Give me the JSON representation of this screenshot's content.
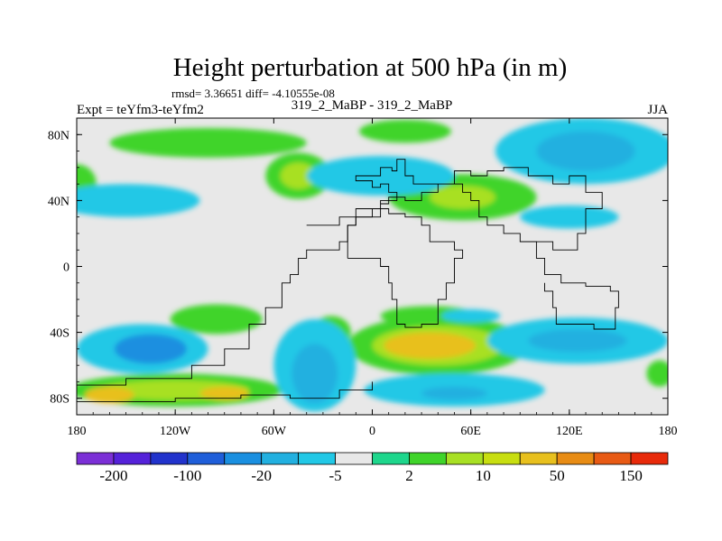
{
  "chart_data": {
    "type": "heatmap",
    "title": "Height perturbation at 500 hPa (in m)",
    "stats_line": "rmsd= 3.36651 diff= -4.10555e-08",
    "experiment_label": "Expt = teYfm3-teYfm2",
    "subtitle": "319_2_MaBP - 319_2_MaBP",
    "season": "JJA",
    "xlim": [
      -180,
      180
    ],
    "ylim": [
      -90,
      90
    ],
    "x_ticks": [
      {
        "value": -180,
        "label": "180"
      },
      {
        "value": -120,
        "label": "120W"
      },
      {
        "value": -60,
        "label": "60W"
      },
      {
        "value": 0,
        "label": "0"
      },
      {
        "value": 60,
        "label": "60E"
      },
      {
        "value": 120,
        "label": "120E"
      },
      {
        "value": 180,
        "label": "180"
      }
    ],
    "y_ticks": [
      {
        "value": 80,
        "label": "80N"
      },
      {
        "value": 40,
        "label": "40N"
      },
      {
        "value": 0,
        "label": "0"
      },
      {
        "value": -40,
        "label": "40S"
      },
      {
        "value": -80,
        "label": "80S"
      }
    ],
    "colorbar": {
      "colors": [
        "#7b2fd6",
        "#5522d9",
        "#2233cc",
        "#1f5ed9",
        "#1a8fe0",
        "#22b0e0",
        "#22c8e6",
        "#e8e8e8",
        "#1ed68c",
        "#3fd42a",
        "#a8e024",
        "#c8de10",
        "#e8c01e",
        "#e88c14",
        "#e85a14",
        "#e82a0a"
      ],
      "tick_labels": [
        {
          "index": 1,
          "label": "-200"
        },
        {
          "index": 3,
          "label": "-100"
        },
        {
          "index": 5,
          "label": "-20"
        },
        {
          "index": 7,
          "label": "-5"
        },
        {
          "index": 9,
          "label": "2"
        },
        {
          "index": 11,
          "label": "10"
        },
        {
          "index": 13,
          "label": "50"
        },
        {
          "index": 15,
          "label": "150"
        }
      ]
    },
    "field_regions": [
      {
        "cls": "pos",
        "level": 9,
        "lon": -180,
        "lat": 50,
        "rlon": 12,
        "rlat": 12
      },
      {
        "cls": "pos",
        "level": 9,
        "lon": -100,
        "lat": 75,
        "rlon": 60,
        "rlat": 9
      },
      {
        "cls": "pos",
        "level": 9,
        "lon": -45,
        "lat": 55,
        "rlon": 20,
        "rlat": 14
      },
      {
        "cls": "pos",
        "level": 10,
        "lon": -45,
        "lat": 55,
        "rlon": 11,
        "rlat": 8
      },
      {
        "cls": "pos",
        "level": 9,
        "lon": 20,
        "lat": 82,
        "rlon": 28,
        "rlat": 7
      },
      {
        "cls": "pos",
        "level": 9,
        "lon": 55,
        "lat": 42,
        "rlon": 45,
        "rlat": 14
      },
      {
        "cls": "pos",
        "level": 10,
        "lon": 55,
        "lat": 42,
        "rlon": 20,
        "rlat": 7
      },
      {
        "cls": "pos",
        "level": 9,
        "lon": -95,
        "lat": -32,
        "rlon": 28,
        "rlat": 9
      },
      {
        "cls": "pos",
        "level": 9,
        "lon": -25,
        "lat": -40,
        "rlon": 12,
        "rlat": 10
      },
      {
        "cls": "pos",
        "level": 9,
        "lon": 40,
        "lat": -48,
        "rlon": 55,
        "rlat": 18
      },
      {
        "cls": "pos",
        "level": 10,
        "lon": 40,
        "lat": -48,
        "rlon": 40,
        "rlat": 12
      },
      {
        "cls": "pos",
        "level": 12,
        "lon": 35,
        "lat": -48,
        "rlon": 28,
        "rlat": 8
      },
      {
        "cls": "pos",
        "level": 9,
        "lon": 35,
        "lat": -30,
        "rlon": 30,
        "rlat": 6
      },
      {
        "cls": "pos",
        "level": 9,
        "lon": -120,
        "lat": -75,
        "rlon": 65,
        "rlat": 10
      },
      {
        "cls": "pos",
        "level": 10,
        "lon": -120,
        "lat": -75,
        "rlon": 45,
        "rlat": 6
      },
      {
        "cls": "pos",
        "level": 12,
        "lon": -160,
        "lat": -78,
        "rlon": 15,
        "rlat": 5
      },
      {
        "cls": "pos",
        "level": 12,
        "lon": -90,
        "lat": -77,
        "rlon": 15,
        "rlat": 4
      },
      {
        "cls": "pos",
        "level": 9,
        "lon": 175,
        "lat": -65,
        "rlon": 8,
        "rlat": 8
      },
      {
        "cls": "neg",
        "level": 6,
        "lon": -150,
        "lat": 40,
        "rlon": 45,
        "rlat": 10
      },
      {
        "cls": "neg",
        "level": 6,
        "lon": 5,
        "lat": 55,
        "rlon": 45,
        "rlat": 12
      },
      {
        "cls": "neg",
        "level": 6,
        "lon": 130,
        "lat": 70,
        "rlon": 55,
        "rlat": 20
      },
      {
        "cls": "neg",
        "level": 5,
        "lon": 130,
        "lat": 70,
        "rlon": 30,
        "rlat": 12
      },
      {
        "cls": "neg",
        "level": 6,
        "lon": 120,
        "lat": 30,
        "rlon": 30,
        "rlat": 7
      },
      {
        "cls": "neg",
        "level": 6,
        "lon": -140,
        "lat": -50,
        "rlon": 40,
        "rlat": 15
      },
      {
        "cls": "neg",
        "level": 4,
        "lon": -135,
        "lat": -50,
        "rlon": 22,
        "rlat": 9
      },
      {
        "cls": "neg",
        "level": 6,
        "lon": -35,
        "lat": -60,
        "rlon": 25,
        "rlat": 28
      },
      {
        "cls": "neg",
        "level": 5,
        "lon": -35,
        "lat": -65,
        "rlon": 14,
        "rlat": 18
      },
      {
        "cls": "neg",
        "level": 6,
        "lon": 125,
        "lat": -45,
        "rlon": 55,
        "rlat": 14
      },
      {
        "cls": "neg",
        "level": 5,
        "lon": 125,
        "lat": -45,
        "rlon": 30,
        "rlat": 7
      },
      {
        "cls": "neg",
        "level": 6,
        "lon": 50,
        "lat": -75,
        "rlon": 55,
        "rlat": 10
      },
      {
        "cls": "neg",
        "level": 5,
        "lon": 50,
        "lat": -77,
        "rlon": 20,
        "rlat": 4
      },
      {
        "cls": "neg",
        "level": 6,
        "lon": 60,
        "lat": -30,
        "rlon": 18,
        "rlat": 4
      }
    ],
    "coastline_lonlat": [
      [
        [
          -40,
          25
        ],
        [
          -20,
          25
        ],
        [
          -20,
          30
        ],
        [
          -5,
          30
        ],
        [
          5,
          40
        ],
        [
          15,
          45
        ],
        [
          10,
          50
        ],
        [
          5,
          48
        ],
        [
          0,
          52
        ],
        [
          -10,
          55
        ],
        [
          5,
          60
        ],
        [
          12,
          58
        ],
        [
          15,
          65
        ],
        [
          20,
          55
        ],
        [
          25,
          50
        ],
        [
          45,
          50
        ],
        [
          55,
          45
        ],
        [
          60,
          40
        ],
        [
          65,
          30
        ],
        [
          70,
          25
        ],
        [
          80,
          20
        ],
        [
          90,
          15
        ],
        [
          100,
          15
        ],
        [
          110,
          10
        ],
        [
          120,
          10
        ],
        [
          125,
          20
        ],
        [
          130,
          35
        ],
        [
          140,
          45
        ],
        [
          130,
          55
        ],
        [
          120,
          50
        ],
        [
          110,
          55
        ],
        [
          95,
          60
        ],
        [
          80,
          58
        ],
        [
          70,
          55
        ],
        [
          60,
          58
        ],
        [
          50,
          50
        ],
        [
          40,
          45
        ],
        [
          30,
          40
        ],
        [
          20,
          42
        ],
        [
          10,
          38
        ],
        [
          5,
          35
        ],
        [
          -5,
          35
        ],
        [
          -10,
          25
        ],
        [
          -15,
          15
        ],
        [
          -20,
          10
        ],
        [
          -40,
          5
        ],
        [
          -45,
          -5
        ],
        [
          -50,
          -10
        ],
        [
          -55,
          -25
        ],
        [
          -65,
          -35
        ],
        [
          -75,
          -50
        ],
        [
          -90,
          -60
        ],
        [
          -110,
          -68
        ],
        [
          -150,
          -72
        ],
        [
          -180,
          -75
        ]
      ],
      [
        [
          -15,
          5
        ],
        [
          5,
          0
        ],
        [
          10,
          -10
        ],
        [
          12,
          -20
        ],
        [
          15,
          -35
        ],
        [
          20,
          -37
        ],
        [
          30,
          -35
        ],
        [
          40,
          -20
        ],
        [
          45,
          -10
        ],
        [
          50,
          5
        ],
        [
          55,
          10
        ],
        [
          50,
          15
        ],
        [
          40,
          15
        ],
        [
          35,
          25
        ],
        [
          30,
          30
        ],
        [
          20,
          32
        ],
        [
          10,
          35
        ],
        [
          0,
          30
        ],
        [
          -10,
          25
        ],
        [
          -15,
          15
        ],
        [
          -15,
          5
        ]
      ],
      [
        [
          90,
          15
        ],
        [
          100,
          5
        ],
        [
          105,
          -5
        ],
        [
          115,
          -10
        ],
        [
          130,
          -12
        ],
        [
          145,
          -15
        ],
        [
          150,
          -25
        ],
        [
          148,
          -38
        ],
        [
          135,
          -35
        ],
        [
          120,
          -35
        ],
        [
          112,
          -25
        ],
        [
          110,
          -15
        ],
        [
          105,
          -10
        ]
      ],
      [
        [
          -180,
          -82
        ],
        [
          -120,
          -80
        ],
        [
          -80,
          -78
        ],
        [
          -50,
          -80
        ],
        [
          -20,
          -75
        ],
        [
          0,
          -70
        ]
      ]
    ]
  }
}
